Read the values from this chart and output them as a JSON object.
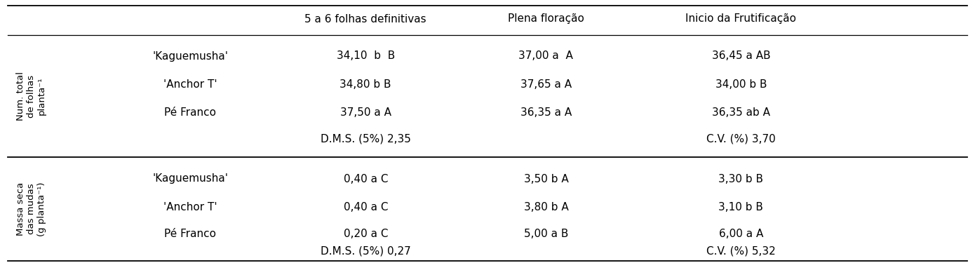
{
  "col_headers": [
    "5 a 6 folhas definitivas",
    "Plena floração",
    "Inicio da Frutificação"
  ],
  "row_group1_label": "Num. total\nde folhas\nplanta⁻¹",
  "row_group2_label": "Massa seca\ndas mudas\n(g planta⁻¹)",
  "group1_rows": [
    [
      "'Kaguemusha'",
      "34,10  b  B",
      "37,00 a  A",
      "36,45 a AB"
    ],
    [
      "'Anchor T'",
      "34,80 b B",
      "37,65 a A",
      "34,00 b B"
    ],
    [
      "Pé Franco",
      "37,50 a A",
      "36,35 a A",
      "36,35 ab A"
    ]
  ],
  "group1_dms": [
    "D.M.S. (5%) 2,35",
    "C.V. (%) 3,70"
  ],
  "group2_rows": [
    [
      "'Kaguemusha'",
      "0,40 a C",
      "3,50 b A",
      "3,30 b B"
    ],
    [
      "'Anchor T'",
      "0,40 a C",
      "3,80 b A",
      "3,10 b B"
    ],
    [
      "Pé Franco",
      "0,20 a C",
      "5,00 a B",
      "6,00 a A"
    ]
  ],
  "group2_dms": [
    "D.M.S. (5%) 0,27",
    "C.V. (%) 5,32"
  ],
  "bg_color": "#ffffff",
  "text_color": "#000000",
  "line_color": "#000000",
  "font_size": 11.0,
  "rotated_label_font_size": 9.5
}
